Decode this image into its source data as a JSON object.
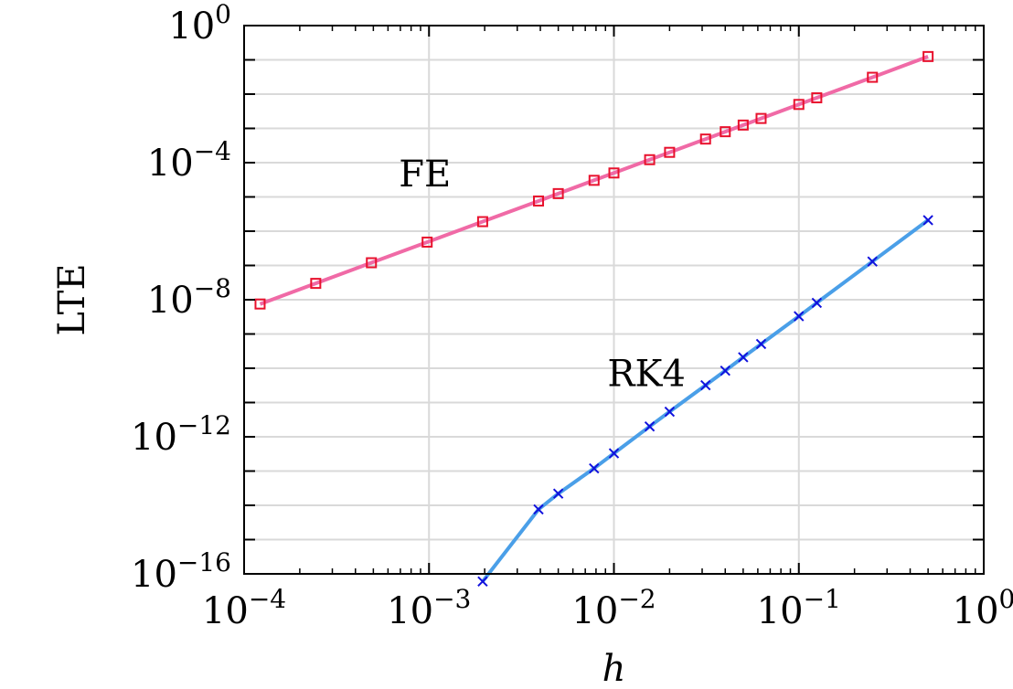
{
  "chart_data": {
    "type": "line",
    "title": "",
    "xlabel": "h",
    "ylabel": "LTE",
    "x_scale": "log",
    "y_scale": "log",
    "xlim": [
      0.0001,
      1
    ],
    "ylim": [
      1e-16,
      1
    ],
    "x_ticks": [
      {
        "value": 0.0001,
        "base": "10",
        "exp": "−4"
      },
      {
        "value": 0.001,
        "base": "10",
        "exp": "−3"
      },
      {
        "value": 0.01,
        "base": "10",
        "exp": "−2"
      },
      {
        "value": 0.1,
        "base": "10",
        "exp": "−1"
      },
      {
        "value": 1,
        "base": "10",
        "exp": "0"
      }
    ],
    "y_ticks": [
      {
        "value": 1,
        "base": "10",
        "exp": "0"
      },
      {
        "value": 0.0001,
        "base": "10",
        "exp": "−4"
      },
      {
        "value": 1e-08,
        "base": "10",
        "exp": "−8"
      },
      {
        "value": 1e-12,
        "base": "10",
        "exp": "−12"
      },
      {
        "value": 1e-16,
        "base": "10",
        "exp": "−16"
      }
    ],
    "grid": true,
    "annotations": [
      {
        "text": "FE",
        "x": 0.00095,
        "y": 2e-05
      },
      {
        "text": "RK4",
        "x": 0.015,
        "y": 3e-11
      }
    ],
    "series": [
      {
        "label": "FE",
        "line_color": "#f06aa6",
        "marker": "square",
        "marker_color": "#e8112d",
        "x": [
          0.000122,
          0.000244,
          0.000488,
          0.000977,
          0.00195,
          0.00391,
          0.005,
          0.00781,
          0.01,
          0.0156,
          0.02,
          0.0313,
          0.04,
          0.05,
          0.0625,
          0.1,
          0.125,
          0.25,
          0.5
        ],
        "y": [
          7.5e-09,
          3e-08,
          1.2e-07,
          4.8e-07,
          1.9e-06,
          7.6e-06,
          1.25e-05,
          3.05e-05,
          5e-05,
          0.000122,
          0.0002,
          0.000488,
          0.0008,
          0.00125,
          0.00195,
          0.005,
          0.0078,
          0.031,
          0.125
        ]
      },
      {
        "label": "RK4",
        "line_color": "#4a9fe8",
        "marker": "x",
        "marker_color": "#1111dd",
        "x": [
          0.00195,
          0.00391,
          0.005,
          0.00781,
          0.01,
          0.0156,
          0.02,
          0.0313,
          0.04,
          0.05,
          0.0625,
          0.1,
          0.125,
          0.25,
          0.5
        ],
        "y": [
          6e-17,
          7.6e-15,
          2.2e-14,
          1.2e-13,
          3.3e-13,
          2e-12,
          5.4e-12,
          3.2e-11,
          8.5e-11,
          2.1e-10,
          5.1e-10,
          3.3e-09,
          8.1e-09,
          1.3e-07,
          2.1e-06
        ]
      }
    ]
  }
}
